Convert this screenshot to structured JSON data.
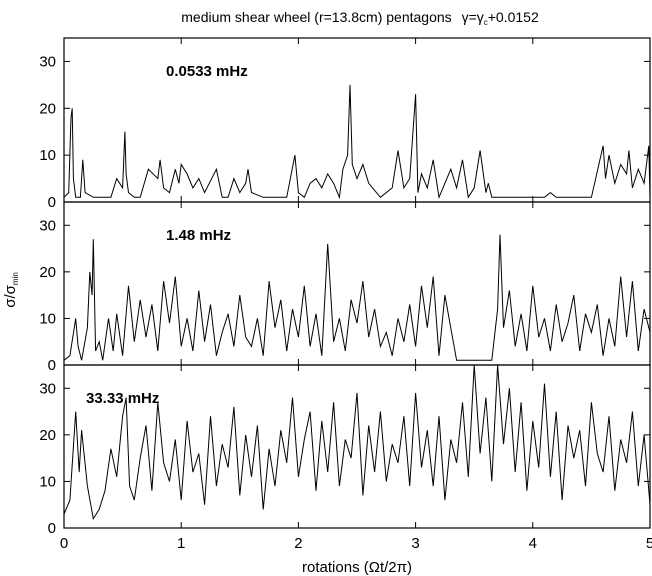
{
  "chart_data": {
    "type": "line",
    "title": {
      "main": "medium shear wheel (r=13.8cm)  pentagons",
      "gamma": "γ",
      "eq": "=",
      "gamma_c": "γ",
      "sub_c": "c",
      "tail": "+0.0152"
    },
    "xlabel": "rotations (Ωt/2π)",
    "ylabel": {
      "sigma": "σ/σ",
      "sub": "min"
    },
    "xlim": [
      0,
      5
    ],
    "x_ticks": [
      "0",
      "1",
      "2",
      "3",
      "4",
      "5"
    ],
    "x_tick_values": [
      0,
      1,
      2,
      3,
      4,
      5
    ],
    "panels": [
      {
        "label": "0.0533 mHz",
        "ylim": [
          0,
          35
        ],
        "y_ticks": [
          "0",
          "10",
          "20",
          "30"
        ],
        "y_tick_values": [
          0,
          10,
          20,
          30
        ],
        "series": [
          {
            "x": [
              0,
              0.04,
              0.06,
              0.07,
              0.08,
              0.1,
              0.14,
              0.16,
              0.18,
              0.25,
              0.3,
              0.35,
              0.4,
              0.45,
              0.5,
              0.52,
              0.53,
              0.55,
              0.6,
              0.65,
              0.72,
              0.8,
              0.82,
              0.85,
              0.9,
              0.95,
              0.98,
              1.0,
              1.05,
              1.1,
              1.15,
              1.2,
              1.3,
              1.35,
              1.4,
              1.45,
              1.5,
              1.55,
              1.57,
              1.6,
              1.7,
              1.8,
              1.9,
              1.97,
              2.0,
              2.05,
              2.1,
              2.15,
              2.2,
              2.25,
              2.3,
              2.35,
              2.38,
              2.42,
              2.44,
              2.46,
              2.5,
              2.55,
              2.6,
              2.7,
              2.8,
              2.85,
              2.9,
              2.95,
              3.0,
              3.02,
              3.05,
              3.1,
              3.15,
              3.2,
              3.25,
              3.3,
              3.35,
              3.4,
              3.45,
              3.5,
              3.55,
              3.6,
              3.62,
              3.65,
              3.7,
              3.75,
              3.8,
              3.85,
              3.9,
              3.95,
              4.0,
              4.05,
              4.1,
              4.15,
              4.2,
              4.25,
              4.3,
              4.35,
              4.4,
              4.5,
              4.6,
              4.62,
              4.65,
              4.7,
              4.75,
              4.8,
              4.82,
              4.85,
              4.9,
              4.95,
              4.99,
              5.0
            ],
            "y": [
              1,
              2,
              18,
              20,
              5,
              1,
              1,
              9,
              2,
              1,
              1,
              1,
              1,
              5,
              3,
              15,
              6,
              2,
              1,
              1,
              7,
              5,
              9,
              3,
              2,
              7,
              4,
              8,
              6,
              3,
              5,
              2,
              7,
              1,
              1,
              5,
              2,
              4,
              7,
              2,
              1,
              1,
              1,
              10,
              2,
              1,
              4,
              5,
              3,
              6,
              4,
              1,
              7,
              10,
              25,
              8,
              5,
              8,
              4,
              1,
              3,
              11,
              3,
              5,
              23,
              2,
              6,
              3,
              9,
              1,
              4,
              7,
              3,
              9,
              1,
              3,
              11,
              2,
              4,
              1,
              1,
              1,
              1,
              1,
              1,
              1,
              1,
              1,
              1,
              2,
              1,
              1,
              1,
              1,
              1,
              1,
              12,
              5,
              10,
              4,
              8,
              6,
              11,
              3,
              7,
              4,
              12,
              1
            ]
          }
        ]
      },
      {
        "label": "1.48 mHz",
        "ylim": [
          0,
          35
        ],
        "y_ticks": [
          "0",
          "10",
          "20",
          "30"
        ],
        "y_tick_values": [
          0,
          10,
          20,
          30
        ],
        "series": [
          {
            "x": [
              0,
              0.05,
              0.1,
              0.12,
              0.15,
              0.2,
              0.22,
              0.24,
              0.25,
              0.27,
              0.3,
              0.33,
              0.38,
              0.42,
              0.45,
              0.5,
              0.55,
              0.6,
              0.65,
              0.7,
              0.75,
              0.8,
              0.85,
              0.9,
              0.95,
              1.0,
              1.05,
              1.1,
              1.15,
              1.2,
              1.25,
              1.3,
              1.35,
              1.4,
              1.45,
              1.5,
              1.55,
              1.6,
              1.65,
              1.7,
              1.75,
              1.8,
              1.85,
              1.9,
              1.95,
              2.0,
              2.05,
              2.1,
              2.15,
              2.2,
              2.25,
              2.3,
              2.35,
              2.4,
              2.45,
              2.5,
              2.55,
              2.6,
              2.65,
              2.7,
              2.75,
              2.8,
              2.85,
              2.9,
              2.95,
              3.0,
              3.05,
              3.1,
              3.15,
              3.2,
              3.25,
              3.35,
              3.45,
              3.55,
              3.6,
              3.65,
              3.7,
              3.72,
              3.75,
              3.8,
              3.85,
              3.9,
              3.95,
              4.0,
              4.05,
              4.1,
              4.15,
              4.2,
              4.25,
              4.3,
              4.35,
              4.4,
              4.45,
              4.5,
              4.55,
              4.6,
              4.65,
              4.7,
              4.75,
              4.8,
              4.85,
              4.9,
              4.95,
              5.0
            ],
            "y": [
              1,
              2,
              10,
              4,
              1,
              8,
              20,
              15,
              27,
              3,
              5,
              1,
              10,
              3,
              11,
              2,
              17,
              5,
              14,
              6,
              13,
              3,
              18,
              9,
              19,
              4,
              10,
              3,
              16,
              5,
              13,
              2,
              7,
              11,
              4,
              15,
              6,
              4,
              10,
              2,
              18,
              8,
              14,
              3,
              12,
              6,
              17,
              4,
              11,
              2,
              26,
              5,
              10,
              3,
              14,
              9,
              18,
              6,
              12,
              4,
              7,
              2,
              10,
              5,
              13,
              4,
              17,
              8,
              19,
              2,
              15,
              1,
              1,
              1,
              1,
              1,
              12,
              28,
              8,
              16,
              4,
              11,
              3,
              17,
              6,
              10,
              3,
              13,
              5,
              9,
              15,
              3,
              11,
              7,
              13,
              2,
              10,
              4,
              19,
              6,
              18,
              3,
              12,
              7
            ]
          }
        ]
      },
      {
        "label": "33.33 mHz",
        "ylim": [
          0,
          35
        ],
        "y_ticks": [
          "0",
          "10",
          "20",
          "30"
        ],
        "y_tick_values": [
          0,
          10,
          20,
          30
        ],
        "series": [
          {
            "x": [
              0,
              0.05,
              0.1,
              0.13,
              0.15,
              0.2,
              0.25,
              0.3,
              0.35,
              0.4,
              0.45,
              0.5,
              0.53,
              0.56,
              0.6,
              0.65,
              0.7,
              0.75,
              0.8,
              0.85,
              0.9,
              0.95,
              1.0,
              1.05,
              1.1,
              1.15,
              1.2,
              1.25,
              1.3,
              1.35,
              1.4,
              1.45,
              1.5,
              1.55,
              1.6,
              1.65,
              1.7,
              1.75,
              1.8,
              1.85,
              1.9,
              1.95,
              2.0,
              2.05,
              2.1,
              2.15,
              2.2,
              2.25,
              2.3,
              2.35,
              2.4,
              2.45,
              2.5,
              2.55,
              2.6,
              2.65,
              2.7,
              2.75,
              2.8,
              2.85,
              2.9,
              2.95,
              3.0,
              3.05,
              3.1,
              3.15,
              3.2,
              3.25,
              3.3,
              3.35,
              3.4,
              3.45,
              3.5,
              3.55,
              3.6,
              3.65,
              3.7,
              3.75,
              3.8,
              3.85,
              3.9,
              3.95,
              4.0,
              4.05,
              4.1,
              4.15,
              4.2,
              4.25,
              4.3,
              4.35,
              4.4,
              4.45,
              4.5,
              4.55,
              4.6,
              4.65,
              4.7,
              4.75,
              4.8,
              4.85,
              4.9,
              4.95,
              5.0
            ],
            "y": [
              3,
              6,
              25,
              12,
              21,
              9,
              2,
              4,
              8,
              17,
              11,
              24,
              28,
              9,
              6,
              15,
              22,
              8,
              27,
              14,
              10,
              19,
              6,
              23,
              12,
              16,
              5,
              24,
              9,
              18,
              13,
              26,
              7,
              20,
              11,
              22,
              4,
              17,
              9,
              21,
              14,
              28,
              11,
              19,
              25,
              8,
              23,
              12,
              27,
              9,
              19,
              15,
              29,
              7,
              22,
              12,
              25,
              10,
              18,
              14,
              24,
              9,
              29,
              13,
              21,
              9,
              24,
              6,
              19,
              14,
              27,
              11,
              35,
              16,
              28,
              10,
              35,
              18,
              30,
              12,
              27,
              8,
              23,
              13,
              31,
              11,
              25,
              6,
              22,
              15,
              21,
              9,
              27,
              16,
              12,
              24,
              8,
              19,
              14,
              25,
              9,
              20,
              5
            ]
          }
        ]
      }
    ]
  }
}
